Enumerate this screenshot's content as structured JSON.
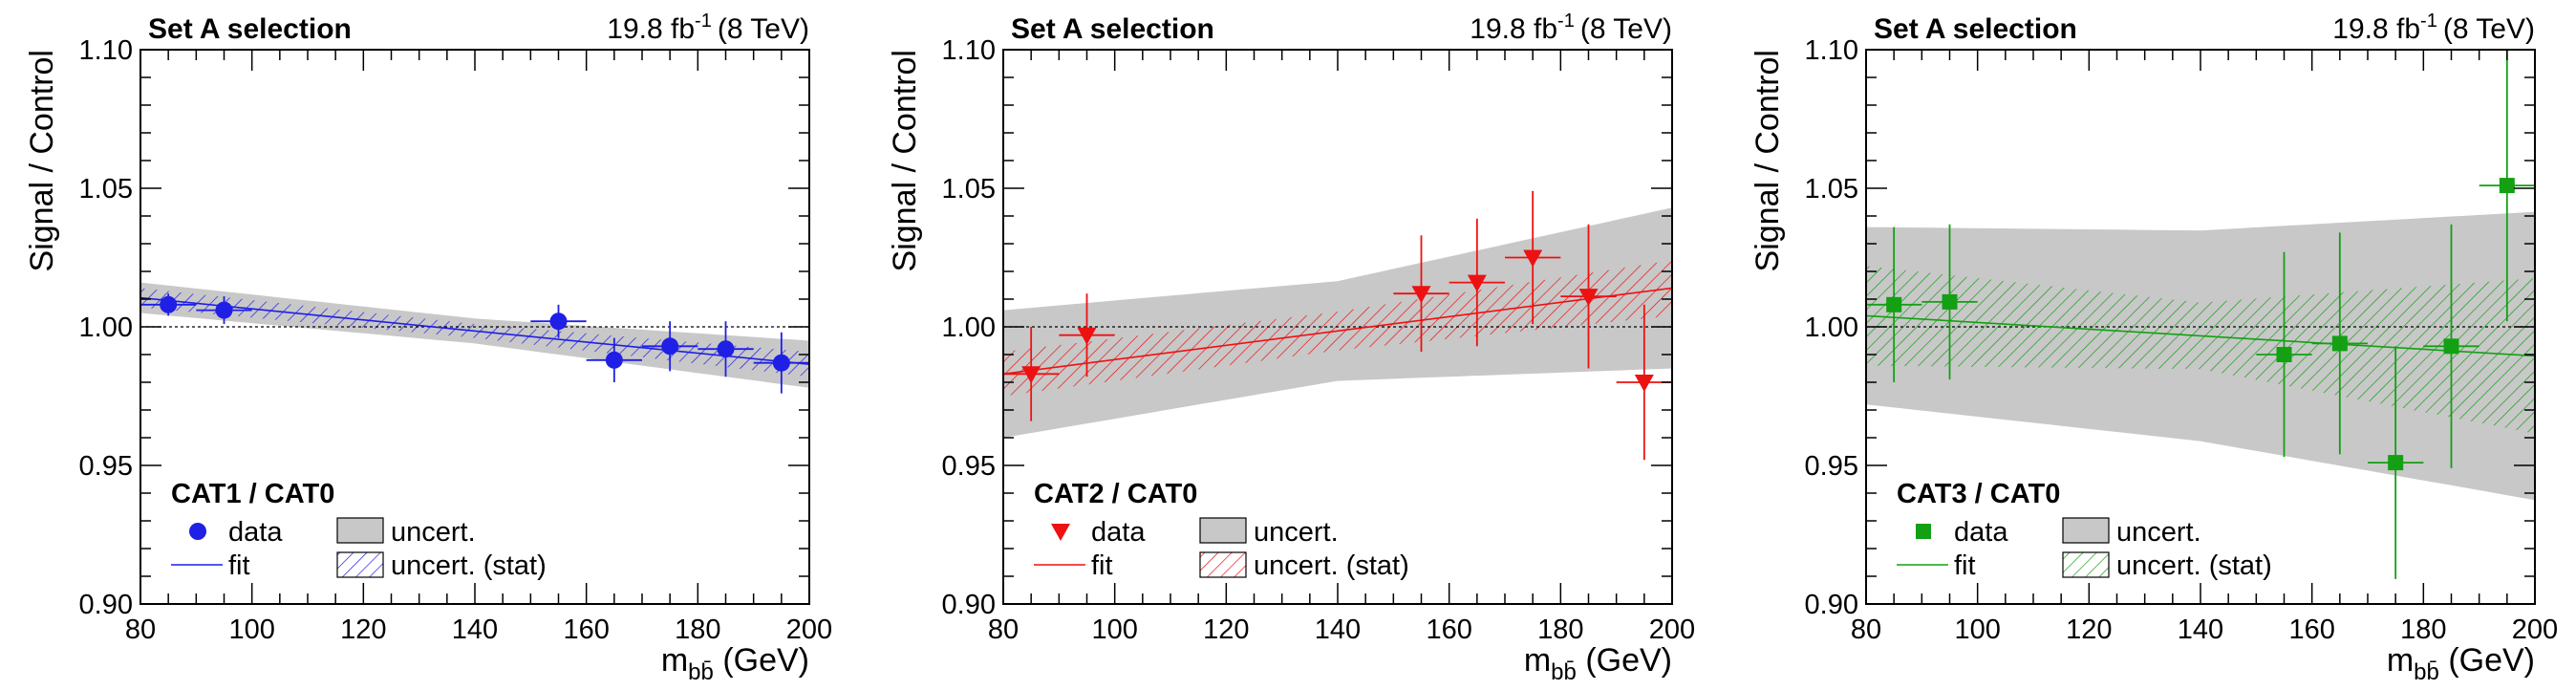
{
  "colors": {
    "band": "#c8c8c8",
    "frame": "#000000",
    "refline": "#000000"
  },
  "chart_data": [
    {
      "type": "scatter",
      "header_left": "Set A selection",
      "header_lumi": "19.8 fb",
      "header_lumi_exp": "-1",
      "header_energy": "(8 TeV)",
      "ylabel": "Signal / Control",
      "xlabel_main": "m",
      "xlabel_sub": "bb̄",
      "xlabel_unit": " (GeV)",
      "xlim": [
        80,
        200
      ],
      "ylim": [
        0.9,
        1.1
      ],
      "xticks": [
        "80",
        "100",
        "120",
        "140",
        "160",
        "180",
        "200"
      ],
      "yticks": [
        "0.90",
        "0.95",
        "1.00",
        "1.05",
        "1.10"
      ],
      "color": "#1f1fe6",
      "marker": "circle",
      "legend_title": "CAT1 / CAT0",
      "legend_data": "data",
      "legend_fit": "fit",
      "legend_uncert": "uncert.",
      "legend_uncert_stat": "uncert. (stat)",
      "points": [
        {
          "x": 85,
          "y": 1.008,
          "yerr": 0.004
        },
        {
          "x": 95,
          "y": 1.006,
          "yerr": 0.005
        },
        {
          "x": 155,
          "y": 1.002,
          "yerr": 0.006
        },
        {
          "x": 165,
          "y": 0.988,
          "yerr": 0.008
        },
        {
          "x": 175,
          "y": 0.993,
          "yerr": 0.009
        },
        {
          "x": 185,
          "y": 0.992,
          "yerr": 0.01
        },
        {
          "x": 195,
          "y": 0.987,
          "yerr": 0.011
        }
      ],
      "fit": {
        "y_at_xmin": 1.0105,
        "y_at_xmax": 0.9865
      },
      "band_total": [
        [
          80,
          0.0055
        ],
        [
          140,
          0.0045
        ],
        [
          200,
          0.0085
        ]
      ],
      "band_stat": [
        [
          80,
          0.0035
        ],
        [
          140,
          0.0025
        ],
        [
          200,
          0.0045
        ]
      ]
    },
    {
      "type": "scatter",
      "header_left": "Set A selection",
      "header_lumi": "19.8 fb",
      "header_lumi_exp": "-1",
      "header_energy": "(8 TeV)",
      "ylabel": "Signal / Control",
      "xlabel_main": "m",
      "xlabel_sub": "bb̄",
      "xlabel_unit": " (GeV)",
      "xlim": [
        80,
        200
      ],
      "ylim": [
        0.9,
        1.1
      ],
      "xticks": [
        "80",
        "100",
        "120",
        "140",
        "160",
        "180",
        "200"
      ],
      "yticks": [
        "0.90",
        "0.95",
        "1.00",
        "1.05",
        "1.10"
      ],
      "color": "#ee1111",
      "marker": "triangle-down",
      "legend_title": "CAT2 / CAT0",
      "legend_data": "data",
      "legend_fit": "fit",
      "legend_uncert": "uncert.",
      "legend_uncert_stat": "uncert. (stat)",
      "points": [
        {
          "x": 85,
          "y": 0.983,
          "yerr": 0.017
        },
        {
          "x": 95,
          "y": 0.997,
          "yerr": 0.015
        },
        {
          "x": 155,
          "y": 1.012,
          "yerr": 0.021
        },
        {
          "x": 165,
          "y": 1.016,
          "yerr": 0.023
        },
        {
          "x": 175,
          "y": 1.025,
          "yerr": 0.024
        },
        {
          "x": 185,
          "y": 1.011,
          "yerr": 0.026
        },
        {
          "x": 195,
          "y": 0.98,
          "yerr": 0.028
        }
      ],
      "fit": {
        "y_at_xmin": 0.983,
        "y_at_xmax": 1.014
      },
      "band_total": [
        [
          80,
          0.023
        ],
        [
          140,
          0.018
        ],
        [
          200,
          0.029
        ]
      ],
      "band_stat": [
        [
          80,
          0.008
        ],
        [
          140,
          0.007
        ],
        [
          200,
          0.01
        ]
      ]
    },
    {
      "type": "scatter",
      "header_left": "Set A selection",
      "header_lumi": "19.8 fb",
      "header_lumi_exp": "-1",
      "header_energy": "(8 TeV)",
      "ylabel": "Signal / Control",
      "xlabel_main": "m",
      "xlabel_sub": "bb̄",
      "xlabel_unit": " (GeV)",
      "xlim": [
        80,
        200
      ],
      "ylim": [
        0.9,
        1.1
      ],
      "xticks": [
        "80",
        "100",
        "120",
        "140",
        "160",
        "180",
        "200"
      ],
      "yticks": [
        "0.90",
        "0.95",
        "1.00",
        "1.05",
        "1.10"
      ],
      "color": "#13a013",
      "marker": "square",
      "legend_title": "CAT3 / CAT0",
      "legend_data": "data",
      "legend_fit": "fit",
      "legend_uncert": "uncert.",
      "legend_uncert_stat": "uncert. (stat)",
      "points": [
        {
          "x": 85,
          "y": 1.008,
          "yerr": 0.028
        },
        {
          "x": 95,
          "y": 1.009,
          "yerr": 0.028
        },
        {
          "x": 155,
          "y": 0.99,
          "yerr": 0.037
        },
        {
          "x": 165,
          "y": 0.994,
          "yerr": 0.04
        },
        {
          "x": 175,
          "y": 0.951,
          "yerr": 0.042
        },
        {
          "x": 185,
          "y": 0.993,
          "yerr": 0.044
        },
        {
          "x": 195,
          "y": 1.051,
          "yerr": 0.049
        }
      ],
      "fit": {
        "y_at_xmin": 1.004,
        "y_at_xmax": 0.9895
      },
      "band_total": [
        [
          80,
          0.032
        ],
        [
          140,
          0.038
        ],
        [
          200,
          0.052
        ]
      ],
      "band_stat": [
        [
          80,
          0.018
        ],
        [
          140,
          0.012
        ],
        [
          200,
          0.028
        ]
      ]
    }
  ]
}
